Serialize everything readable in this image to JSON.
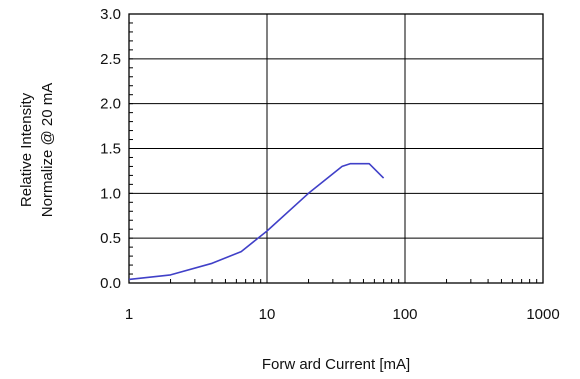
{
  "chart_data": {
    "type": "line",
    "xscale": "log",
    "xlabel": "Forw ard Current [mA]",
    "ylabel_lines": [
      "Relative Intensity",
      "Normalize @ 20 mA"
    ],
    "xlim": [
      1,
      1000
    ],
    "ylim": [
      0,
      3.0
    ],
    "x_ticks": [
      1,
      10,
      100,
      1000
    ],
    "x_tick_labels": [
      "1",
      "10",
      "100",
      "1000"
    ],
    "y_ticks": [
      0,
      0.5,
      1.0,
      1.5,
      2.0,
      2.5,
      3.0
    ],
    "y_tick_labels": [
      "0.0",
      "0.5",
      "1.0",
      "1.5",
      "2.0",
      "2.5",
      "3.0"
    ],
    "grid": true,
    "series": [
      {
        "color": "#4040c8",
        "x": [
          1,
          2,
          4,
          6.5,
          10,
          20,
          35,
          40,
          55,
          70
        ],
        "y": [
          0.04,
          0.09,
          0.22,
          0.35,
          0.58,
          1.0,
          1.3,
          1.33,
          1.33,
          1.17
        ]
      }
    ]
  }
}
